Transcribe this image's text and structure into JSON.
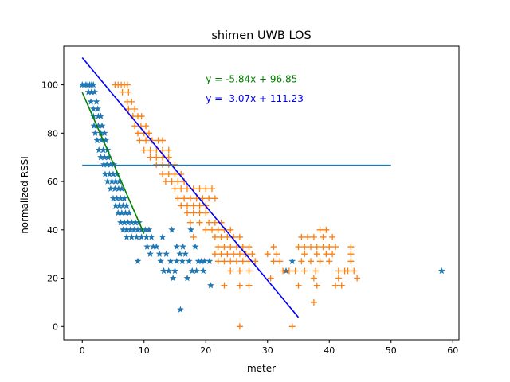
{
  "chart_data": {
    "type": "scatter",
    "title": "shimen UWB LOS",
    "xlabel": "meter",
    "ylabel": "normalized RSSI",
    "xlim": [
      -3,
      61
    ],
    "ylim": [
      -5.5,
      116
    ],
    "xticks": [
      0,
      10,
      20,
      30,
      40,
      50,
      60
    ],
    "yticks": [
      0,
      20,
      40,
      60,
      80,
      100
    ],
    "grid": false,
    "legend": "none",
    "series": [
      {
        "marker": "star",
        "color": "#1f77b4",
        "points": [
          [
            0.0,
            100
          ],
          [
            0.3,
            100
          ],
          [
            0.6,
            100
          ],
          [
            0.9,
            100
          ],
          [
            1.2,
            100
          ],
          [
            1.5,
            100
          ],
          [
            1.8,
            100
          ],
          [
            1.0,
            97
          ],
          [
            1.5,
            97
          ],
          [
            2.0,
            97
          ],
          [
            2.3,
            93
          ],
          [
            1.4,
            93
          ],
          [
            1.8,
            90
          ],
          [
            2.5,
            90
          ],
          [
            1.8,
            87
          ],
          [
            2.6,
            87
          ],
          [
            3.0,
            87
          ],
          [
            1.9,
            83
          ],
          [
            2.6,
            83
          ],
          [
            3.2,
            83
          ],
          [
            2.1,
            80
          ],
          [
            3.0,
            80
          ],
          [
            3.6,
            80
          ],
          [
            2.4,
            77
          ],
          [
            3.1,
            77
          ],
          [
            3.8,
            77
          ],
          [
            2.7,
            73
          ],
          [
            3.4,
            73
          ],
          [
            4.1,
            73
          ],
          [
            3.0,
            70
          ],
          [
            3.6,
            70
          ],
          [
            4.2,
            70
          ],
          [
            3.5,
            67
          ],
          [
            4.0,
            67
          ],
          [
            4.6,
            67
          ],
          [
            5.1,
            67
          ],
          [
            3.7,
            63
          ],
          [
            4.4,
            63
          ],
          [
            5.0,
            63
          ],
          [
            5.6,
            63
          ],
          [
            4.1,
            60
          ],
          [
            4.8,
            60
          ],
          [
            5.4,
            60
          ],
          [
            6.0,
            60
          ],
          [
            4.6,
            57
          ],
          [
            5.3,
            57
          ],
          [
            5.9,
            57
          ],
          [
            6.4,
            57
          ],
          [
            5.0,
            53
          ],
          [
            5.6,
            53
          ],
          [
            6.2,
            53
          ],
          [
            6.8,
            53
          ],
          [
            5.4,
            50
          ],
          [
            6.0,
            50
          ],
          [
            6.6,
            50
          ],
          [
            7.2,
            50
          ],
          [
            5.8,
            47
          ],
          [
            6.4,
            47
          ],
          [
            7.0,
            47
          ],
          [
            7.6,
            47
          ],
          [
            6.2,
            43
          ],
          [
            6.8,
            43
          ],
          [
            7.4,
            43
          ],
          [
            8.0,
            43
          ],
          [
            8.6,
            43
          ],
          [
            9.2,
            43
          ],
          [
            6.6,
            40
          ],
          [
            7.2,
            40
          ],
          [
            7.8,
            40
          ],
          [
            8.4,
            40
          ],
          [
            9.0,
            40
          ],
          [
            9.6,
            40
          ],
          [
            10.2,
            40
          ],
          [
            10.8,
            40
          ],
          [
            7.2,
            37
          ],
          [
            8.0,
            37
          ],
          [
            8.8,
            37
          ],
          [
            9.6,
            37
          ],
          [
            10.4,
            37
          ],
          [
            11.2,
            37
          ],
          [
            10.5,
            33
          ],
          [
            11.5,
            33
          ],
          [
            9.0,
            27
          ],
          [
            11.0,
            30
          ],
          [
            12.0,
            33
          ],
          [
            12.5,
            30
          ],
          [
            12.7,
            27
          ],
          [
            13.2,
            23
          ],
          [
            14.0,
            23
          ],
          [
            15.0,
            23
          ],
          [
            13.6,
            30
          ],
          [
            14.3,
            27
          ],
          [
            15.3,
            27
          ],
          [
            15.8,
            30
          ],
          [
            16.2,
            27
          ],
          [
            16.7,
            30
          ],
          [
            17.3,
            27
          ],
          [
            17.8,
            23
          ],
          [
            14.5,
            40
          ],
          [
            15.3,
            33
          ],
          [
            17.6,
            40
          ],
          [
            18.3,
            33
          ],
          [
            18.8,
            27
          ],
          [
            19.3,
            27
          ],
          [
            19.8,
            27
          ],
          [
            20.6,
            27
          ],
          [
            14.7,
            20
          ],
          [
            17.0,
            20
          ],
          [
            18.5,
            23
          ],
          [
            19.6,
            23
          ],
          [
            20.8,
            17
          ],
          [
            15.9,
            7
          ],
          [
            16.3,
            33
          ],
          [
            13.0,
            37
          ],
          [
            33.0,
            23
          ],
          [
            34.0,
            27
          ],
          [
            58.2,
            23
          ]
        ]
      },
      {
        "marker": "plus",
        "color": "#ff7f0e",
        "points": [
          [
            5.3,
            100
          ],
          [
            5.8,
            100
          ],
          [
            6.3,
            100
          ],
          [
            6.8,
            100
          ],
          [
            7.3,
            100
          ],
          [
            6.5,
            97
          ],
          [
            7.5,
            97
          ],
          [
            7.3,
            93
          ],
          [
            8.0,
            93
          ],
          [
            7.5,
            90
          ],
          [
            8.5,
            90
          ],
          [
            8.2,
            87
          ],
          [
            9.0,
            87
          ],
          [
            9.6,
            87
          ],
          [
            8.5,
            83
          ],
          [
            9.5,
            83
          ],
          [
            10.3,
            83
          ],
          [
            9.0,
            80
          ],
          [
            10.0,
            80
          ],
          [
            10.8,
            80
          ],
          [
            9.3,
            77
          ],
          [
            10.3,
            77
          ],
          [
            11.3,
            77
          ],
          [
            12.3,
            77
          ],
          [
            13.0,
            77
          ],
          [
            10.0,
            73
          ],
          [
            11.0,
            73
          ],
          [
            12.0,
            73
          ],
          [
            13.0,
            73
          ],
          [
            14.0,
            73
          ],
          [
            11.0,
            70
          ],
          [
            12.0,
            70
          ],
          [
            13.0,
            70
          ],
          [
            14.0,
            70
          ],
          [
            12.0,
            67
          ],
          [
            13.0,
            67
          ],
          [
            14.0,
            67
          ],
          [
            15.0,
            67
          ],
          [
            13.0,
            63
          ],
          [
            14.0,
            63
          ],
          [
            15.0,
            63
          ],
          [
            16.0,
            63
          ],
          [
            13.5,
            60
          ],
          [
            14.5,
            60
          ],
          [
            15.5,
            60
          ],
          [
            16.5,
            60
          ],
          [
            15.0,
            57
          ],
          [
            16.0,
            57
          ],
          [
            17.0,
            57
          ],
          [
            18.0,
            57
          ],
          [
            19.0,
            57
          ],
          [
            20.0,
            57
          ],
          [
            21.0,
            57
          ],
          [
            15.5,
            53
          ],
          [
            16.5,
            53
          ],
          [
            17.5,
            53
          ],
          [
            18.5,
            53
          ],
          [
            19.5,
            53
          ],
          [
            20.5,
            53
          ],
          [
            21.5,
            53
          ],
          [
            16.0,
            50
          ],
          [
            17.0,
            50
          ],
          [
            18.0,
            50
          ],
          [
            19.0,
            50
          ],
          [
            20.0,
            50
          ],
          [
            17.0,
            47
          ],
          [
            18.0,
            47
          ],
          [
            19.0,
            47
          ],
          [
            20.0,
            47
          ],
          [
            17.5,
            43
          ],
          [
            19.0,
            43
          ],
          [
            20.5,
            43
          ],
          [
            21.5,
            43
          ],
          [
            22.5,
            43
          ],
          [
            20.0,
            40
          ],
          [
            21.0,
            40
          ],
          [
            22.0,
            40
          ],
          [
            23.0,
            40
          ],
          [
            24.0,
            40
          ],
          [
            21.5,
            37
          ],
          [
            22.5,
            37
          ],
          [
            23.5,
            37
          ],
          [
            24.5,
            37
          ],
          [
            25.5,
            37
          ],
          [
            18.0,
            37
          ],
          [
            22.0,
            33
          ],
          [
            23.0,
            33
          ],
          [
            24.0,
            33
          ],
          [
            25.0,
            33
          ],
          [
            26.0,
            33
          ],
          [
            27.0,
            33
          ],
          [
            21.5,
            30
          ],
          [
            22.5,
            30
          ],
          [
            23.5,
            30
          ],
          [
            24.5,
            30
          ],
          [
            25.5,
            30
          ],
          [
            26.5,
            30
          ],
          [
            27.5,
            30
          ],
          [
            22.0,
            27
          ],
          [
            23.0,
            27
          ],
          [
            24.0,
            27
          ],
          [
            25.0,
            27
          ],
          [
            26.0,
            27
          ],
          [
            27.0,
            27
          ],
          [
            28.0,
            27
          ],
          [
            24.0,
            23
          ],
          [
            25.5,
            23
          ],
          [
            27.0,
            23
          ],
          [
            23.0,
            17
          ],
          [
            25.5,
            17
          ],
          [
            27.0,
            17
          ],
          [
            25.5,
            0
          ],
          [
            34.0,
            0
          ],
          [
            37.5,
            10
          ],
          [
            31.0,
            33
          ],
          [
            31.5,
            30
          ],
          [
            32.0,
            27
          ],
          [
            32.5,
            23
          ],
          [
            33.5,
            23
          ],
          [
            34.5,
            23
          ],
          [
            35.5,
            27
          ],
          [
            36.0,
            30
          ],
          [
            35.0,
            33
          ],
          [
            35.5,
            37
          ],
          [
            36.0,
            33
          ],
          [
            36.5,
            37
          ],
          [
            37.0,
            33
          ],
          [
            37.5,
            37
          ],
          [
            38.0,
            33
          ],
          [
            38.5,
            40
          ],
          [
            39.0,
            37
          ],
          [
            39.5,
            40
          ],
          [
            39.0,
            33
          ],
          [
            38.0,
            30
          ],
          [
            37.0,
            27
          ],
          [
            36.0,
            23
          ],
          [
            37.5,
            20
          ],
          [
            38.5,
            27
          ],
          [
            39.5,
            30
          ],
          [
            40.0,
            27
          ],
          [
            40.5,
            30
          ],
          [
            41.0,
            33
          ],
          [
            40.5,
            37
          ],
          [
            40.0,
            33
          ],
          [
            41.5,
            23
          ],
          [
            41.0,
            17
          ],
          [
            41.5,
            20
          ],
          [
            42.0,
            17
          ],
          [
            43.0,
            23
          ],
          [
            43.5,
            27
          ],
          [
            44.0,
            23
          ],
          [
            44.5,
            20
          ],
          [
            43.5,
            30
          ],
          [
            43.5,
            33
          ],
          [
            42.5,
            23
          ],
          [
            38.0,
            17
          ],
          [
            37.8,
            23
          ],
          [
            35.0,
            17
          ],
          [
            30.5,
            20
          ],
          [
            30.0,
            30
          ],
          [
            31.0,
            27
          ]
        ]
      }
    ],
    "lines": [
      {
        "label": "y = -5.84x + 96.85",
        "color": "#008000",
        "slope": -5.84,
        "intercept": 96.85,
        "x": [
          0,
          10
        ]
      },
      {
        "label": "y = -3.07x + 111.23",
        "color": "#0000ff",
        "slope": -3.07,
        "intercept": 111.23,
        "x": [
          0,
          35
        ]
      },
      {
        "label": "",
        "color": "#1f77b4",
        "slope": 0,
        "intercept": 66.7,
        "x": [
          0,
          50
        ]
      }
    ],
    "annotations": [
      {
        "text": "y = -5.84x + 96.85",
        "color": "#008000",
        "x": 20,
        "y": 101
      },
      {
        "text": "y = -3.07x + 111.23",
        "color": "#0000ff",
        "x": 20,
        "y": 93
      }
    ]
  }
}
